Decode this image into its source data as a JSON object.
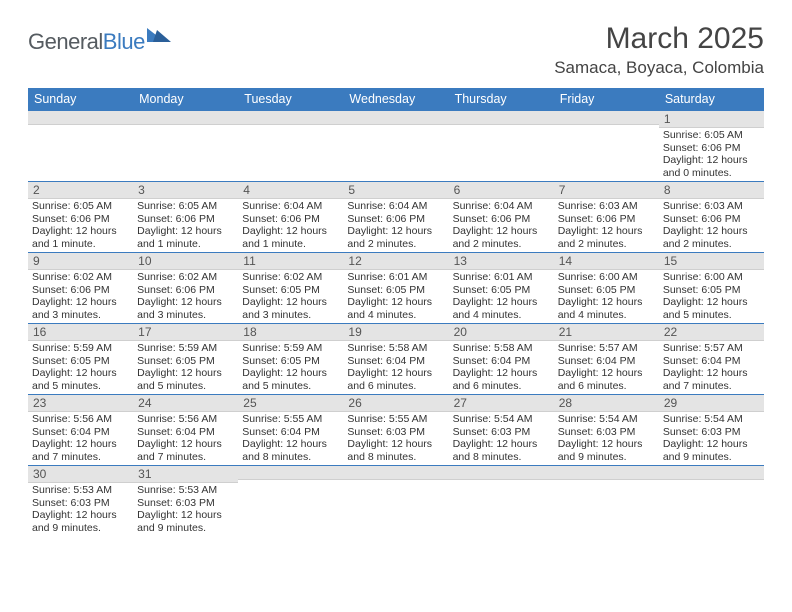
{
  "brand": {
    "name1": "General",
    "name2": "Blue"
  },
  "title": "March 2025",
  "location": "Samaca, Boyaca, Colombia",
  "colors": {
    "header_bg": "#3b7bbf",
    "header_text": "#ffffff",
    "daynum_bg": "#e4e4e4",
    "body_text": "#333333",
    "week_border": "#3b7bbf"
  },
  "typography": {
    "title_fontsize": 30,
    "location_fontsize": 17,
    "dow_fontsize": 12.5,
    "daynum_fontsize": 12,
    "body_fontsize": 10.5
  },
  "dow": [
    "Sunday",
    "Monday",
    "Tuesday",
    "Wednesday",
    "Thursday",
    "Friday",
    "Saturday"
  ],
  "weeks": [
    [
      {
        "n": "",
        "sr": "",
        "ss": "",
        "dl": ""
      },
      {
        "n": "",
        "sr": "",
        "ss": "",
        "dl": ""
      },
      {
        "n": "",
        "sr": "",
        "ss": "",
        "dl": ""
      },
      {
        "n": "",
        "sr": "",
        "ss": "",
        "dl": ""
      },
      {
        "n": "",
        "sr": "",
        "ss": "",
        "dl": ""
      },
      {
        "n": "",
        "sr": "",
        "ss": "",
        "dl": ""
      },
      {
        "n": "1",
        "sr": "Sunrise: 6:05 AM",
        "ss": "Sunset: 6:06 PM",
        "dl": "Daylight: 12 hours and 0 minutes."
      }
    ],
    [
      {
        "n": "2",
        "sr": "Sunrise: 6:05 AM",
        "ss": "Sunset: 6:06 PM",
        "dl": "Daylight: 12 hours and 1 minute."
      },
      {
        "n": "3",
        "sr": "Sunrise: 6:05 AM",
        "ss": "Sunset: 6:06 PM",
        "dl": "Daylight: 12 hours and 1 minute."
      },
      {
        "n": "4",
        "sr": "Sunrise: 6:04 AM",
        "ss": "Sunset: 6:06 PM",
        "dl": "Daylight: 12 hours and 1 minute."
      },
      {
        "n": "5",
        "sr": "Sunrise: 6:04 AM",
        "ss": "Sunset: 6:06 PM",
        "dl": "Daylight: 12 hours and 2 minutes."
      },
      {
        "n": "6",
        "sr": "Sunrise: 6:04 AM",
        "ss": "Sunset: 6:06 PM",
        "dl": "Daylight: 12 hours and 2 minutes."
      },
      {
        "n": "7",
        "sr": "Sunrise: 6:03 AM",
        "ss": "Sunset: 6:06 PM",
        "dl": "Daylight: 12 hours and 2 minutes."
      },
      {
        "n": "8",
        "sr": "Sunrise: 6:03 AM",
        "ss": "Sunset: 6:06 PM",
        "dl": "Daylight: 12 hours and 2 minutes."
      }
    ],
    [
      {
        "n": "9",
        "sr": "Sunrise: 6:02 AM",
        "ss": "Sunset: 6:06 PM",
        "dl": "Daylight: 12 hours and 3 minutes."
      },
      {
        "n": "10",
        "sr": "Sunrise: 6:02 AM",
        "ss": "Sunset: 6:06 PM",
        "dl": "Daylight: 12 hours and 3 minutes."
      },
      {
        "n": "11",
        "sr": "Sunrise: 6:02 AM",
        "ss": "Sunset: 6:05 PM",
        "dl": "Daylight: 12 hours and 3 minutes."
      },
      {
        "n": "12",
        "sr": "Sunrise: 6:01 AM",
        "ss": "Sunset: 6:05 PM",
        "dl": "Daylight: 12 hours and 4 minutes."
      },
      {
        "n": "13",
        "sr": "Sunrise: 6:01 AM",
        "ss": "Sunset: 6:05 PM",
        "dl": "Daylight: 12 hours and 4 minutes."
      },
      {
        "n": "14",
        "sr": "Sunrise: 6:00 AM",
        "ss": "Sunset: 6:05 PM",
        "dl": "Daylight: 12 hours and 4 minutes."
      },
      {
        "n": "15",
        "sr": "Sunrise: 6:00 AM",
        "ss": "Sunset: 6:05 PM",
        "dl": "Daylight: 12 hours and 5 minutes."
      }
    ],
    [
      {
        "n": "16",
        "sr": "Sunrise: 5:59 AM",
        "ss": "Sunset: 6:05 PM",
        "dl": "Daylight: 12 hours and 5 minutes."
      },
      {
        "n": "17",
        "sr": "Sunrise: 5:59 AM",
        "ss": "Sunset: 6:05 PM",
        "dl": "Daylight: 12 hours and 5 minutes."
      },
      {
        "n": "18",
        "sr": "Sunrise: 5:59 AM",
        "ss": "Sunset: 6:05 PM",
        "dl": "Daylight: 12 hours and 5 minutes."
      },
      {
        "n": "19",
        "sr": "Sunrise: 5:58 AM",
        "ss": "Sunset: 6:04 PM",
        "dl": "Daylight: 12 hours and 6 minutes."
      },
      {
        "n": "20",
        "sr": "Sunrise: 5:58 AM",
        "ss": "Sunset: 6:04 PM",
        "dl": "Daylight: 12 hours and 6 minutes."
      },
      {
        "n": "21",
        "sr": "Sunrise: 5:57 AM",
        "ss": "Sunset: 6:04 PM",
        "dl": "Daylight: 12 hours and 6 minutes."
      },
      {
        "n": "22",
        "sr": "Sunrise: 5:57 AM",
        "ss": "Sunset: 6:04 PM",
        "dl": "Daylight: 12 hours and 7 minutes."
      }
    ],
    [
      {
        "n": "23",
        "sr": "Sunrise: 5:56 AM",
        "ss": "Sunset: 6:04 PM",
        "dl": "Daylight: 12 hours and 7 minutes."
      },
      {
        "n": "24",
        "sr": "Sunrise: 5:56 AM",
        "ss": "Sunset: 6:04 PM",
        "dl": "Daylight: 12 hours and 7 minutes."
      },
      {
        "n": "25",
        "sr": "Sunrise: 5:55 AM",
        "ss": "Sunset: 6:04 PM",
        "dl": "Daylight: 12 hours and 8 minutes."
      },
      {
        "n": "26",
        "sr": "Sunrise: 5:55 AM",
        "ss": "Sunset: 6:03 PM",
        "dl": "Daylight: 12 hours and 8 minutes."
      },
      {
        "n": "27",
        "sr": "Sunrise: 5:54 AM",
        "ss": "Sunset: 6:03 PM",
        "dl": "Daylight: 12 hours and 8 minutes."
      },
      {
        "n": "28",
        "sr": "Sunrise: 5:54 AM",
        "ss": "Sunset: 6:03 PM",
        "dl": "Daylight: 12 hours and 9 minutes."
      },
      {
        "n": "29",
        "sr": "Sunrise: 5:54 AM",
        "ss": "Sunset: 6:03 PM",
        "dl": "Daylight: 12 hours and 9 minutes."
      }
    ],
    [
      {
        "n": "30",
        "sr": "Sunrise: 5:53 AM",
        "ss": "Sunset: 6:03 PM",
        "dl": "Daylight: 12 hours and 9 minutes."
      },
      {
        "n": "31",
        "sr": "Sunrise: 5:53 AM",
        "ss": "Sunset: 6:03 PM",
        "dl": "Daylight: 12 hours and 9 minutes."
      },
      {
        "n": "",
        "sr": "",
        "ss": "",
        "dl": ""
      },
      {
        "n": "",
        "sr": "",
        "ss": "",
        "dl": ""
      },
      {
        "n": "",
        "sr": "",
        "ss": "",
        "dl": ""
      },
      {
        "n": "",
        "sr": "",
        "ss": "",
        "dl": ""
      },
      {
        "n": "",
        "sr": "",
        "ss": "",
        "dl": ""
      }
    ]
  ]
}
